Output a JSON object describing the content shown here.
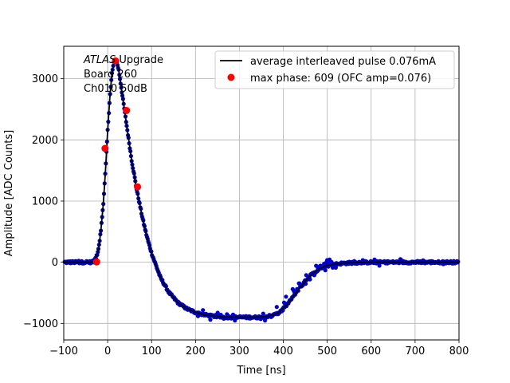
{
  "chart_data": {
    "type": "scatter",
    "title": "",
    "xlabel": "Time [ns]",
    "ylabel": "Amplitude [ADC Counts]",
    "xlim": [
      -100,
      800
    ],
    "ylim": [
      -1270,
      3530
    ],
    "xticks": [
      -100,
      0,
      100,
      200,
      300,
      400,
      500,
      600,
      700,
      800
    ],
    "yticks": [
      -1000,
      0,
      1000,
      2000,
      3000
    ],
    "grid": true,
    "legend_placement": "top-right",
    "annotation": {
      "italic": "ATLAS",
      "line1_rest": " Upgrade",
      "line2": " Board 260",
      "line3": " Ch010 50dB"
    },
    "series": [
      {
        "name": "average interleaved pulse 0.076mA",
        "kind": "line",
        "color": "#000000",
        "x": [
          -100,
          -40,
          -32,
          -25,
          -20,
          -15,
          -10,
          -5,
          0,
          5,
          10,
          15,
          20,
          25,
          30,
          35,
          40,
          45,
          50,
          55,
          60,
          65,
          70,
          80,
          90,
          100,
          120,
          140,
          160,
          180,
          200,
          220,
          240,
          260,
          280,
          300,
          320,
          340,
          360,
          380,
          390,
          400,
          410,
          420,
          430,
          440,
          450,
          460,
          470,
          480,
          490,
          500,
          520,
          540,
          560,
          580,
          600,
          650,
          700,
          750,
          800
        ],
        "y": [
          0,
          0,
          10,
          100,
          250,
          550,
          950,
          1500,
          2150,
          2700,
          3100,
          3300,
          3290,
          3150,
          2900,
          2650,
          2400,
          2150,
          1900,
          1650,
          1450,
          1230,
          1050,
          700,
          400,
          150,
          -250,
          -500,
          -660,
          -760,
          -820,
          -860,
          -880,
          -895,
          -900,
          -900,
          -900,
          -900,
          -890,
          -860,
          -820,
          -760,
          -680,
          -590,
          -490,
          -400,
          -310,
          -230,
          -170,
          -120,
          -80,
          -55,
          -30,
          -15,
          -7,
          -3,
          0,
          0,
          0,
          0,
          0
        ]
      },
      {
        "name": "max phase: 609 (OFC amp=0.076)",
        "kind": "markers",
        "color": "#ff0000",
        "x": [
          -25,
          -6,
          18,
          43,
          68
        ],
        "y": [
          5,
          1860,
          3290,
          2480,
          1230
        ]
      },
      {
        "name": "",
        "kind": "points",
        "color": "#0000cc",
        "x": [],
        "y": []
      }
    ]
  }
}
